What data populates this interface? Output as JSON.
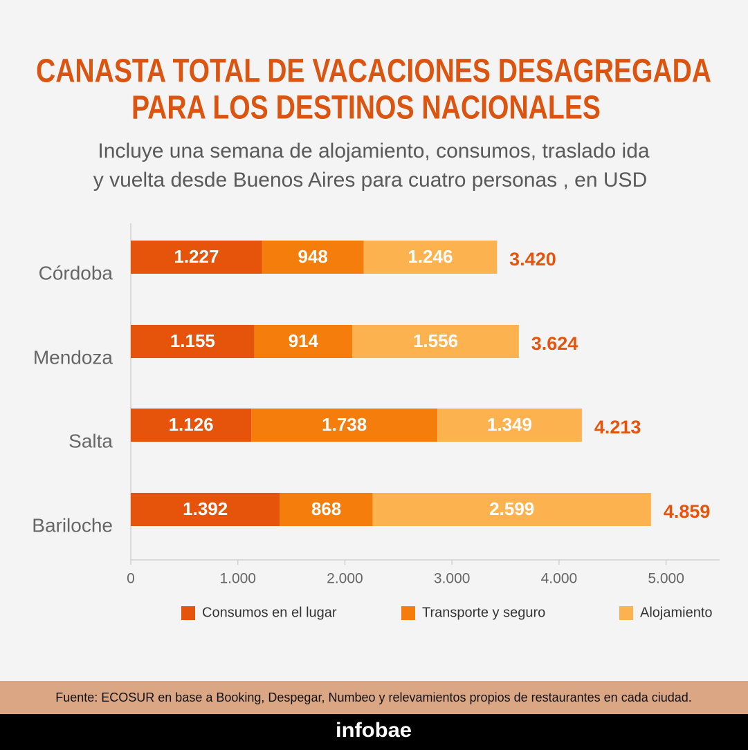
{
  "chart_data": {
    "type": "stacked-barh",
    "title": [
      "CANASTA TOTAL DE VACACIONES DESAGREGADA",
      "PARA LOS DESTINOS NACIONALES"
    ],
    "subtitle": [
      "Incluye una semana de alojamiento, consumos, traslado ida",
      "y vuelta desde Buenos Aires para cuatro personas , en USD"
    ],
    "categories": [
      "Córdoba",
      "Mendoza",
      "Salta",
      "Bariloche"
    ],
    "series": [
      {
        "name": "Consumos en el lugar",
        "color": "#e5540a",
        "values": [
          1227,
          1155,
          1126,
          1392
        ],
        "value_labels": [
          "1.227",
          "1.155",
          "1.126",
          "1.392"
        ]
      },
      {
        "name": "Transporte y seguro",
        "color": "#f47d0c",
        "values": [
          948,
          914,
          1738,
          868
        ],
        "value_labels": [
          "948",
          "914",
          "1.738",
          "868"
        ]
      },
      {
        "name": "Alojamiento",
        "color": "#fdb250",
        "values": [
          1246,
          1556,
          1349,
          2599
        ],
        "value_labels": [
          "1.246",
          "1.556",
          "1.349",
          "2.599"
        ]
      }
    ],
    "totals": {
      "values": [
        3420,
        3624,
        4213,
        4859
      ],
      "value_labels": [
        "3.420",
        "3.624",
        "4.213",
        "4.859"
      ],
      "color": "#e5540a"
    },
    "xlim": [
      0,
      5500
    ],
    "xticks": [
      0,
      {
        "value": 1000,
        "label": "1.000"
      },
      {
        "value": 2000,
        "label": "2.000"
      },
      {
        "value": 3000,
        "label": "3.000"
      },
      {
        "value": 4000,
        "label": "4.000"
      },
      {
        "value": 5000,
        "label": "5.000"
      }
    ],
    "source": "Fuente: ECOSUR en base a Booking, Despegar, Numbeo y relevamientos propios de restaurantes en cada ciudad.",
    "brand": "infobae"
  }
}
